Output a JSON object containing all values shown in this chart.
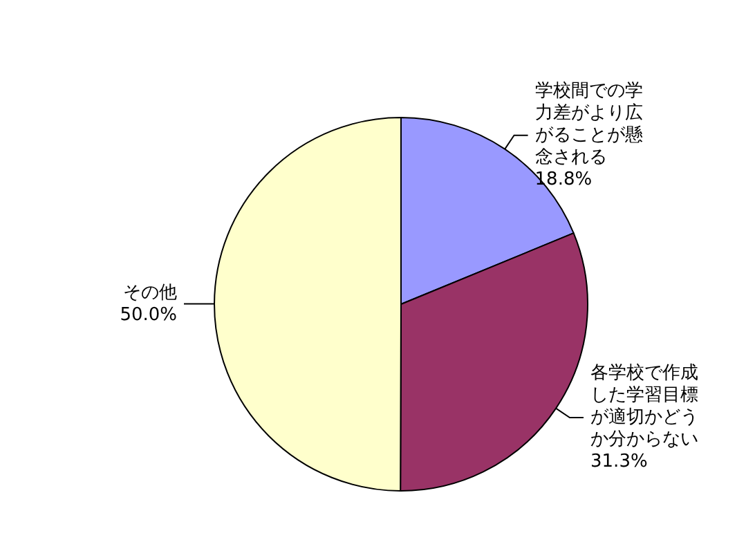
{
  "chart_data": {
    "type": "pie",
    "categories": [
      "学校間での学力差がより広がることが懸念される",
      "各学校で作成した学習目標が適切かどうか分からない",
      "その他"
    ],
    "values": [
      18.8,
      31.3,
      50.0
    ],
    "colors": [
      "#9999ff",
      "#993366",
      "#ffffcc"
    ],
    "value_labels": [
      "18.8%",
      "31.3%",
      "50.0%"
    ],
    "legend": false
  }
}
